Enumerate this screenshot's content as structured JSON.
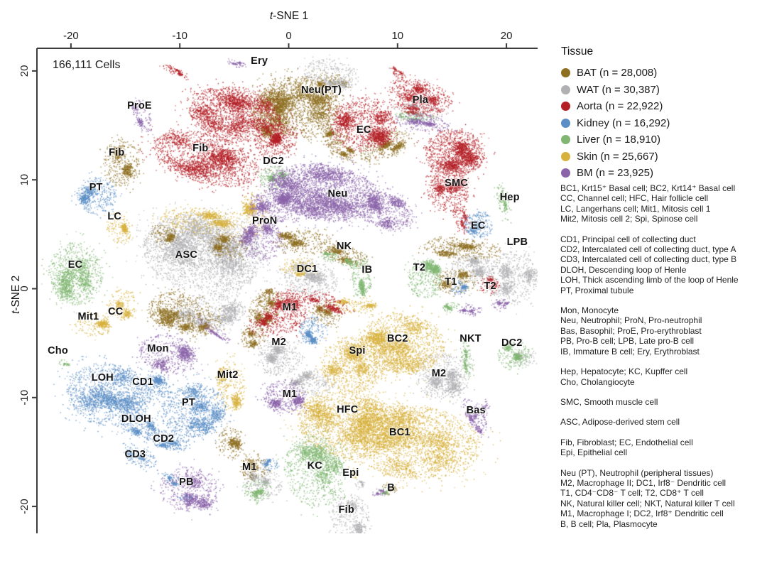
{
  "figure": {
    "cells_count_label": "166,111 Cells",
    "x_axis": {
      "title": "t-SNE 1",
      "ticks": [
        -20,
        -10,
        0,
        10,
        20
      ]
    },
    "y_axis": {
      "title": "t-SNE 2",
      "ticks": [
        20,
        10,
        0,
        -10,
        -20
      ]
    }
  },
  "legend": {
    "title": "Tissue",
    "items": [
      {
        "tissue": "BAT",
        "label": "BAT (n = 28,008)"
      },
      {
        "tissue": "WAT",
        "label": "WAT (n = 30,387)"
      },
      {
        "tissue": "Aorta",
        "label": "Aorta (n = 22,922)"
      },
      {
        "tissue": "Kidney",
        "label": "Kidney (n = 16,292)"
      },
      {
        "tissue": "Liver",
        "label": "Liver (n = 18,910)"
      },
      {
        "tissue": "Skin",
        "label": "Skin (n = 25,667)"
      },
      {
        "tissue": "BM",
        "label": "BM (n = 23,925)"
      }
    ]
  },
  "abbreviations": {
    "groups": [
      [
        "BC1, Krt15⁺ Basal cell; BC2, Krt14⁺ Basal cell",
        "CC, Channel cell; HFC, Hair follicle cell",
        "LC, Langerhans cell; Mit1, Mitosis cell 1",
        "Mit2, Mitosis cell 2; Spi, Spinose cell"
      ],
      [
        "CD1, Principal cell of collecting duct",
        "CD2, Intercalated cell of collecting duct, type A",
        "CD3, Intercalated cell of collecting duct, type B",
        "DLOH, Descending loop of Henle",
        "LOH, Thick ascending limb of the loop of Henle",
        "PT, Proximal tubule"
      ],
      [
        "Mon, Monocyte",
        "Neu, Neutrophil; ProN, Pro-neutrophil",
        "Bas, Basophil; ProE, Pro-erythroblast",
        "PB, Pro-B cell; LPB, Late pro-B cell",
        "IB, Immature B cell; Ery, Erythroblast"
      ],
      [
        "Hep, Hepatocyte; KC, Kupffer cell",
        "Cho, Cholangiocyte"
      ],
      [
        "SMC, Smooth muscle cell"
      ],
      [
        "ASC, Adipose-derived stem cell"
      ],
      [
        "Fib, Fibroblast; EC, Endothelial cell",
        "Epi, Epithelial cell"
      ],
      [
        "Neu (PT), Neutrophil (peripheral tissues)",
        "M2, Macrophage II; DC1, Irf8⁻ Dendritic cell",
        "T1, CD4⁻CD8⁻ T cell; T2, CD8⁺ T cell",
        "NK, Natural killer cell; NKT, Natural killer T cell",
        "M1, Macrophage I; DC2, Irf8⁺ Dendritic cell",
        "B, B cell; Pla, Plasmocyte"
      ]
    ]
  },
  "chart_data": {
    "type": "scatter",
    "title": "t-SNE embedding of 166,111 single cells colored by tissue",
    "xlabel": "t-SNE 1",
    "ylabel": "t-SNE 2",
    "xlim": [
      -23.1,
      22.9
    ],
    "ylim": [
      -22.5,
      22.1
    ],
    "x_ticks": [
      -20,
      -10,
      0,
      10,
      20
    ],
    "y_ticks": [
      20,
      10,
      0,
      -10,
      -20
    ],
    "legend_position": "right",
    "grid": false,
    "tissue_colors": {
      "BAT": "#8e6f22",
      "WAT": "#b1b1b4",
      "Aorta": "#b32026",
      "Kidney": "#5b8ec5",
      "Liver": "#80b671",
      "Skin": "#d7b13d",
      "BM": "#8a63a9"
    },
    "cluster_labels": [
      {
        "text": "Ery",
        "x": -2.7,
        "y": 20.9
      },
      {
        "text": "Neu(PT)",
        "x": 3.0,
        "y": 18.2
      },
      {
        "text": "Pla",
        "x": 12.1,
        "y": 17.3
      },
      {
        "text": "ProE",
        "x": -13.7,
        "y": 16.8
      },
      {
        "text": "Fib",
        "x": -15.8,
        "y": 12.5
      },
      {
        "text": "Fib",
        "x": -8.1,
        "y": 12.9
      },
      {
        "text": "EC",
        "x": 6.9,
        "y": 14.6
      },
      {
        "text": "DC2",
        "x": -1.4,
        "y": 11.7
      },
      {
        "text": "SMC",
        "x": 15.4,
        "y": 9.7
      },
      {
        "text": "Hep",
        "x": 20.3,
        "y": 8.4
      },
      {
        "text": "PT",
        "x": -17.7,
        "y": 9.3
      },
      {
        "text": "Neu",
        "x": 4.5,
        "y": 8.7
      },
      {
        "text": "LC",
        "x": -16.0,
        "y": 6.6
      },
      {
        "text": "ProN",
        "x": -2.2,
        "y": 6.2
      },
      {
        "text": "EC",
        "x": 17.4,
        "y": 5.8
      },
      {
        "text": "LPB",
        "x": 21.0,
        "y": 4.3
      },
      {
        "text": "NK",
        "x": 5.1,
        "y": 3.9
      },
      {
        "text": "ASC",
        "x": -9.4,
        "y": 3.1
      },
      {
        "text": "EC",
        "x": -19.6,
        "y": 2.2
      },
      {
        "text": "DC1",
        "x": 1.7,
        "y": 1.8
      },
      {
        "text": "IB",
        "x": 7.2,
        "y": 1.7
      },
      {
        "text": "T2",
        "x": 12.0,
        "y": 1.9
      },
      {
        "text": "T1",
        "x": 14.9,
        "y": 0.6
      },
      {
        "text": "T2",
        "x": 18.5,
        "y": 0.2
      },
      {
        "text": "Mit1",
        "x": -18.4,
        "y": -2.6
      },
      {
        "text": "CC",
        "x": -15.9,
        "y": -2.1
      },
      {
        "text": "M1",
        "x": 0.1,
        "y": -1.7
      },
      {
        "text": "NKT",
        "x": 16.7,
        "y": -4.6
      },
      {
        "text": "DC2",
        "x": 20.5,
        "y": -5.0
      },
      {
        "text": "Cho",
        "x": -21.2,
        "y": -5.7
      },
      {
        "text": "Mon",
        "x": -12.0,
        "y": -5.5
      },
      {
        "text": "M2",
        "x": -0.9,
        "y": -4.9
      },
      {
        "text": "Spi",
        "x": 6.3,
        "y": -5.7
      },
      {
        "text": "BC2",
        "x": 10.0,
        "y": -4.6
      },
      {
        "text": "LOH",
        "x": -17.1,
        "y": -8.2
      },
      {
        "text": "CD1",
        "x": -13.4,
        "y": -8.6
      },
      {
        "text": "Mit2",
        "x": -5.6,
        "y": -7.9
      },
      {
        "text": "M2",
        "x": 13.8,
        "y": -7.8
      },
      {
        "text": "PT",
        "x": -9.2,
        "y": -10.5
      },
      {
        "text": "M1",
        "x": 0.1,
        "y": -9.7
      },
      {
        "text": "HFC",
        "x": 5.4,
        "y": -11.1
      },
      {
        "text": "Bas",
        "x": 17.2,
        "y": -11.2
      },
      {
        "text": "DLOH",
        "x": -14.0,
        "y": -12.0
      },
      {
        "text": "BC1",
        "x": 10.2,
        "y": -13.2
      },
      {
        "text": "CD2",
        "x": -11.5,
        "y": -13.8
      },
      {
        "text": "CD3",
        "x": -14.1,
        "y": -15.2
      },
      {
        "text": "M1",
        "x": -3.6,
        "y": -16.4
      },
      {
        "text": "KC",
        "x": 2.4,
        "y": -16.3
      },
      {
        "text": "Epi",
        "x": 5.7,
        "y": -16.9
      },
      {
        "text": "PB",
        "x": -9.4,
        "y": -17.8
      },
      {
        "text": "B",
        "x": 9.4,
        "y": -18.3
      },
      {
        "text": "Fib",
        "x": 5.3,
        "y": -20.3
      }
    ],
    "blobs": [
      [
        "WAT",
        -7.9,
        3.3,
        5.6,
        3.6,
        -10,
        4200
      ],
      [
        "WAT",
        -7.6,
        -2.2,
        3.6,
        1.8,
        5,
        1100
      ],
      [
        "WAT",
        3.9,
        19.7,
        2.6,
        1.4,
        -10,
        600
      ],
      [
        "WAT",
        2.0,
        0.9,
        2.5,
        1.6,
        -10,
        800
      ],
      [
        "WAT",
        20.5,
        1.0,
        2.3,
        2.5,
        0,
        900
      ],
      [
        "WAT",
        16.9,
        1.7,
        2.0,
        1.6,
        0,
        550
      ],
      [
        "WAT",
        -0.9,
        -6.3,
        2.0,
        1.6,
        0,
        650
      ],
      [
        "WAT",
        14.1,
        -8.0,
        2.5,
        2.1,
        0,
        950
      ],
      [
        "WAT",
        5.6,
        -20.8,
        1.8,
        2.0,
        0,
        550
      ],
      [
        "WAT",
        -2.4,
        -17.9,
        1.8,
        1.4,
        0,
        400
      ],
      [
        "WAT",
        2.2,
        -8.6,
        2.1,
        1.2,
        0,
        450
      ],
      [
        "WAT",
        11.9,
        16.4,
        2.3,
        0.7,
        -5,
        230
      ],
      [
        "WAT",
        6.5,
        -17.9,
        0.5,
        0.35,
        0,
        45
      ],
      [
        "WAT",
        21.5,
        -6.4,
        1.0,
        0.8,
        0,
        170
      ],
      [
        "BAT",
        -15.4,
        11.6,
        1.7,
        2.2,
        10,
        650
      ],
      [
        "BAT",
        0.9,
        16.7,
        3.9,
        2.8,
        -5,
        2800
      ],
      [
        "BAT",
        -1.8,
        15.7,
        1.7,
        1.9,
        10,
        650
      ],
      [
        "BAT",
        4.2,
        14.1,
        1.2,
        0.8,
        0,
        220
      ],
      [
        "BAT",
        8.8,
        13.1,
        2.5,
        1.1,
        25,
        550
      ],
      [
        "BAT",
        4.8,
        12.8,
        1.3,
        0.8,
        -20,
        260
      ],
      [
        "BAT",
        -10.5,
        -1.9,
        2.5,
        1.7,
        0,
        800
      ],
      [
        "BAT",
        -5.6,
        4.0,
        1.8,
        1.2,
        0,
        450
      ],
      [
        "BAT",
        -11.5,
        5.0,
        1.2,
        0.9,
        0,
        260
      ],
      [
        "BAT",
        -8.2,
        -3.2,
        2.0,
        1.2,
        10,
        450
      ],
      [
        "BAT",
        1.6,
        4.3,
        3.0,
        1.1,
        -5,
        650
      ],
      [
        "BAT",
        5.3,
        3.1,
        2.1,
        0.9,
        -15,
        420
      ],
      [
        "BAT",
        -2.4,
        -2.2,
        1.4,
        1.6,
        0,
        420
      ],
      [
        "BAT",
        3.5,
        -2.2,
        1.4,
        1.2,
        0,
        330
      ],
      [
        "BAT",
        -3.3,
        -4.5,
        1.2,
        1.0,
        0,
        260
      ],
      [
        "BAT",
        -1.8,
        -0.9,
        1.2,
        0.9,
        0,
        240
      ],
      [
        "BAT",
        15.9,
        3.7,
        3.6,
        1.0,
        -5,
        650
      ],
      [
        "BAT",
        15.3,
        0.7,
        2.0,
        1.2,
        0,
        420
      ],
      [
        "BAT",
        -5.3,
        -14.1,
        1.2,
        1.6,
        0,
        340
      ],
      [
        "BAT",
        -3.3,
        -16.3,
        1.3,
        1.3,
        0,
        300
      ],
      [
        "BAT",
        9.1,
        -18.4,
        0.8,
        0.5,
        0,
        90
      ],
      [
        "BAT",
        3.9,
        19.0,
        1.5,
        0.8,
        0,
        220
      ],
      [
        "Skin",
        -15.6,
        5.6,
        1.05,
        1.6,
        15,
        280
      ],
      [
        "Skin",
        -15.3,
        -1.4,
        1.45,
        1.45,
        0,
        320
      ],
      [
        "Skin",
        -18.0,
        -3.2,
        1.75,
        1.1,
        -10,
        320
      ],
      [
        "Skin",
        10.4,
        -5.0,
        3.9,
        2.75,
        -5,
        2300
      ],
      [
        "Skin",
        6.0,
        -6.9,
        3.1,
        2.6,
        10,
        1600
      ],
      [
        "Skin",
        5.6,
        -12.45,
        4.9,
        3.1,
        -8,
        2900
      ],
      [
        "Skin",
        11.5,
        -14.1,
        6.2,
        3.4,
        -5,
        3500
      ],
      [
        "Skin",
        -5.4,
        -8.9,
        1.3,
        2.4,
        5,
        550
      ],
      [
        "Skin",
        -8.2,
        6.3,
        3.6,
        1.2,
        -5,
        700
      ],
      [
        "Skin",
        -3.3,
        6.9,
        1.3,
        2.0,
        0,
        380
      ],
      [
        "Skin",
        0.9,
        2.0,
        1.6,
        0.8,
        0,
        260
      ],
      [
        "Skin",
        6.1,
        -1.5,
        2.0,
        0.8,
        0,
        260
      ],
      [
        "Skin",
        6.0,
        -17.1,
        0.4,
        0.3,
        0,
        35
      ],
      [
        "Aorta",
        -5.0,
        16.1,
        4.3,
        2.5,
        -10,
        2600
      ],
      [
        "Aorta",
        -7.6,
        12.0,
        5.1,
        2.3,
        -15,
        2400
      ],
      [
        "Aorta",
        -10.5,
        20.0,
        1.2,
        0.35,
        -25,
        120
      ],
      [
        "Aorta",
        -1.2,
        13.7,
        2.0,
        1.5,
        20,
        650
      ],
      [
        "Aorta",
        6.8,
        15.1,
        3.0,
        2.5,
        0,
        1700
      ],
      [
        "Aorta",
        12.0,
        17.7,
        3.0,
        1.5,
        -12,
        900
      ],
      [
        "Aorta",
        10.1,
        19.7,
        1.0,
        0.4,
        -40,
        90
      ],
      [
        "Aorta",
        15.2,
        12.5,
        2.8,
        2.2,
        0,
        1800
      ],
      [
        "Aorta",
        14.6,
        9.0,
        1.9,
        2.0,
        10,
        800
      ],
      [
        "Aorta",
        15.8,
        6.6,
        0.7,
        1.5,
        15,
        180
      ],
      [
        "Aorta",
        -0.1,
        -2.0,
        1.7,
        2.0,
        0,
        850
      ],
      [
        "Aorta",
        3.2,
        -1.2,
        2.3,
        0.8,
        -20,
        320
      ],
      [
        "Aorta",
        -2.4,
        -3.3,
        1.3,
        1.2,
        0,
        280
      ],
      [
        "Aorta",
        18.4,
        0.4,
        0.95,
        0.8,
        0,
        190
      ],
      [
        "Aorta",
        12.0,
        16.5,
        2.3,
        0.6,
        -8,
        220
      ],
      [
        "Liver",
        -19.6,
        1.4,
        2.5,
        2.9,
        10,
        1400
      ],
      [
        "Liver",
        19.7,
        7.9,
        0.6,
        1.7,
        10,
        190
      ],
      [
        "Liver",
        -1.4,
        10.2,
        1.3,
        1.1,
        0,
        320
      ],
      [
        "Liver",
        6.7,
        1.0,
        0.9,
        1.85,
        0,
        380
      ],
      [
        "Liver",
        5.5,
        2.35,
        0.65,
        0.5,
        0,
        90
      ],
      [
        "Liver",
        12.5,
        1.0,
        1.6,
        1.85,
        0,
        650
      ],
      [
        "Liver",
        2.35,
        -16.7,
        2.75,
        3.4,
        15,
        1400
      ],
      [
        "Liver",
        20.65,
        -6.1,
        1.5,
        1.4,
        0,
        420
      ],
      [
        "Liver",
        -3.0,
        -18.5,
        1.4,
        1.0,
        0,
        260
      ],
      [
        "Liver",
        16.3,
        -6.4,
        0.5,
        1.85,
        10,
        190
      ],
      [
        "Liver",
        11.7,
        15.8,
        2.0,
        0.5,
        -5,
        140
      ],
      [
        "Liver",
        3.7,
        3.0,
        0.8,
        0.5,
        0,
        100
      ],
      [
        "Liver",
        -20.65,
        -6.8,
        0.5,
        0.33,
        0,
        45
      ],
      [
        "Liver",
        8.8,
        -18.5,
        0.65,
        0.4,
        0,
        70
      ],
      [
        "Liver",
        15.0,
        -1.7,
        0.9,
        0.5,
        0,
        110
      ],
      [
        "Kidney",
        -17.65,
        8.6,
        1.85,
        1.7,
        0,
        650
      ],
      [
        "Kidney",
        17.4,
        5.9,
        1.3,
        1.2,
        0,
        420
      ],
      [
        "Kidney",
        -16.6,
        -9.7,
        3.9,
        2.9,
        -10,
        2100
      ],
      [
        "Kidney",
        -8.8,
        -11.1,
        3.0,
        2.5,
        10,
        1400
      ],
      [
        "Kidney",
        -13.7,
        -12.6,
        1.85,
        1.05,
        -20,
        380
      ],
      [
        "Kidney",
        -11.0,
        -13.9,
        2.2,
        0.85,
        -12,
        380
      ],
      [
        "Kidney",
        -13.7,
        -15.4,
        1.6,
        0.9,
        -25,
        320
      ],
      [
        "Kidney",
        -12.5,
        -9.0,
        1.6,
        1.2,
        0,
        380
      ],
      [
        "Kidney",
        2.1,
        -3.8,
        1.2,
        1.3,
        0,
        400
      ],
      [
        "Kidney",
        15.6,
        0.1,
        0.8,
        0.65,
        0,
        130
      ],
      [
        "Kidney",
        -10.85,
        -17.4,
        1.0,
        0.5,
        -30,
        130
      ],
      [
        "Kidney",
        -9.4,
        -19.2,
        0.65,
        0.33,
        0,
        70
      ],
      [
        "Kidney",
        -1.8,
        -16.1,
        0.8,
        0.65,
        0,
        110
      ],
      [
        "BM",
        -13.5,
        15.9,
        0.8,
        1.7,
        25,
        230
      ],
      [
        "BM",
        3.2,
        8.9,
        5.2,
        2.6,
        -8,
        3800
      ],
      [
        "BM",
        8.7,
        7.25,
        2.9,
        1.6,
        -20,
        1100
      ],
      [
        "BM",
        -1.4,
        7.6,
        2.3,
        1.6,
        10,
        900
      ],
      [
        "BM",
        -2.5,
        4.45,
        2.0,
        1.8,
        0,
        750
      ],
      [
        "BM",
        -11.05,
        -6.0,
        2.75,
        1.8,
        -10,
        850
      ],
      [
        "BM",
        -6.9,
        -3.8,
        2.0,
        0.4,
        -35,
        130
      ],
      [
        "BM",
        -9.15,
        -18.4,
        2.75,
        2.1,
        -5,
        950
      ],
      [
        "BM",
        -0.4,
        -9.9,
        2.0,
        1.6,
        0,
        650
      ],
      [
        "BM",
        17.1,
        -11.7,
        0.8,
        2.0,
        30,
        230
      ],
      [
        "BM",
        17.5,
        -11.3,
        0.7,
        1.2,
        -40,
        110
      ],
      [
        "BM",
        12.2,
        15.3,
        2.5,
        0.8,
        -8,
        380
      ],
      [
        "BM",
        16.7,
        -1.9,
        1.0,
        0.5,
        0,
        130
      ],
      [
        "BM",
        19.5,
        -1.4,
        0.8,
        0.5,
        0,
        100
      ],
      [
        "BM",
        8.3,
        -18.7,
        0.65,
        0.4,
        0,
        70
      ],
      [
        "BM",
        -4.8,
        20.7,
        0.9,
        0.3,
        -15,
        70
      ]
    ]
  }
}
